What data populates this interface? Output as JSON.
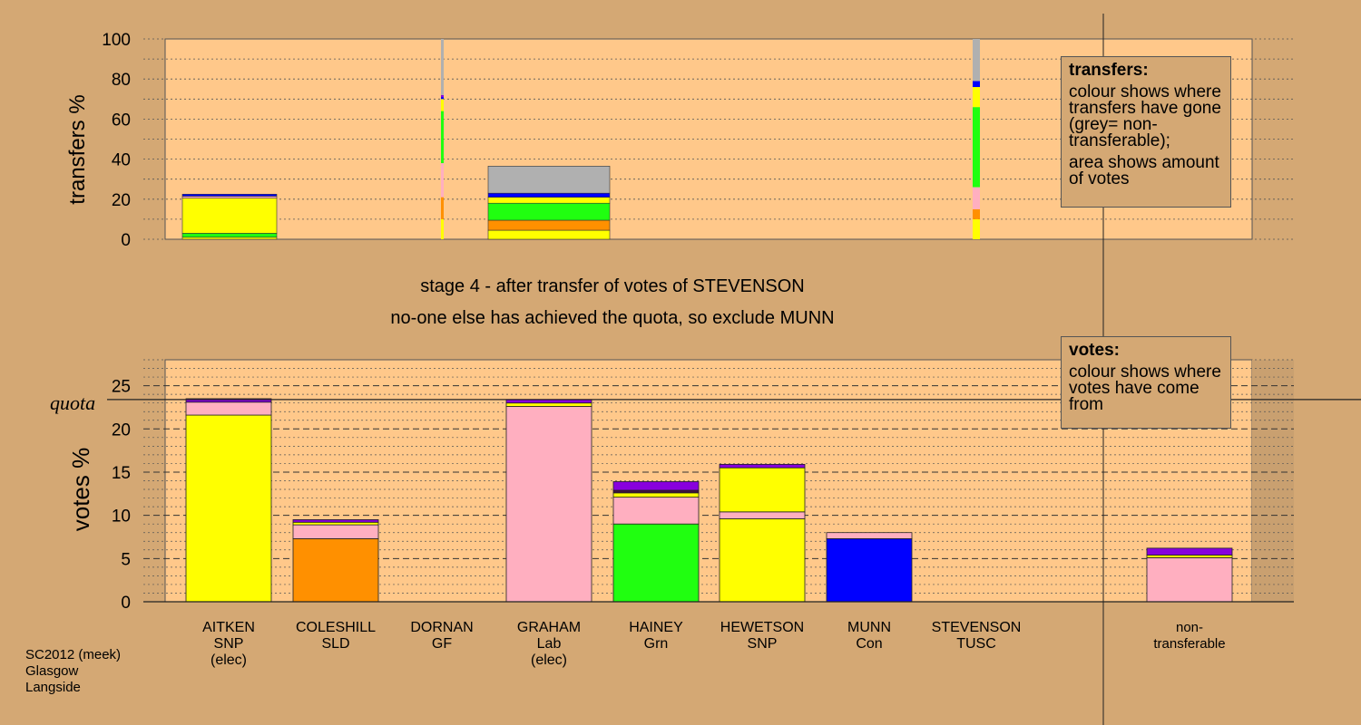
{
  "stage_line1": "stage 4 - after transfer of votes of STEVENSON",
  "stage_line2": "no-one else has achieved the quota, so exclude MUNN",
  "legend_transfers": {
    "title": "transfers:",
    "p1": "colour shows where transfers have gone (grey= non-transferable);",
    "p2": "area shows amount of votes"
  },
  "legend_votes": {
    "title": "votes:",
    "p1": "colour shows where votes have come from"
  },
  "source": [
    "SC2012 (meek)",
    "Glasgow",
    "Langside"
  ],
  "colors": {
    "background": "#d4a874",
    "plot_area": "#ffc88a",
    "SNP": "#ffff00",
    "SLD": "#ff9000",
    "Lab": "#ffafc0",
    "Grn": "#20ff10",
    "Con": "#0000ff",
    "TUSC": "#8800dd",
    "GF": "#401040",
    "nontransferable": "#b0b0b0"
  },
  "chart_data": [
    {
      "type": "bar",
      "name": "transfers",
      "ylabel": "transfers %",
      "ylim": [
        0,
        100
      ],
      "yticks": [
        0,
        20,
        40,
        60,
        80,
        100
      ],
      "grid": true,
      "bars": [
        {
          "candidate": "AITKEN",
          "segments": [
            {
              "to": "SNP",
              "value": 1
            },
            {
              "to": "Grn",
              "value": 2
            },
            {
              "to": "SNP",
              "value": 17.5
            },
            {
              "to": "Lab",
              "value": 1
            },
            {
              "to": "Con",
              "value": 1
            }
          ]
        },
        {
          "candidate": "DORNAN",
          "segments": [
            {
              "to": "SNP",
              "value": 10
            },
            {
              "to": "SLD",
              "value": 11
            },
            {
              "to": "Lab",
              "value": 17
            },
            {
              "to": "Grn",
              "value": 26
            },
            {
              "to": "SNP",
              "value": 6
            },
            {
              "to": "Con",
              "value": 1
            },
            {
              "to": "TUSC",
              "value": 1
            },
            {
              "to": "nontransferable",
              "value": 28
            }
          ]
        },
        {
          "candidate": "GRAHAM",
          "segments": [
            {
              "to": "SNP",
              "value": 4.5
            },
            {
              "to": "SLD",
              "value": 5
            },
            {
              "to": "Grn",
              "value": 8.5
            },
            {
              "to": "SNP",
              "value": 3
            },
            {
              "to": "Con",
              "value": 2
            },
            {
              "to": "nontransferable",
              "value": 13.5
            }
          ]
        },
        {
          "candidate": "STEVENSON",
          "segments": [
            {
              "to": "SNP",
              "value": 10
            },
            {
              "to": "SLD",
              "value": 5
            },
            {
              "to": "Lab",
              "value": 11
            },
            {
              "to": "Grn",
              "value": 40
            },
            {
              "to": "SNP",
              "value": 10
            },
            {
              "to": "Con",
              "value": 3
            },
            {
              "to": "nontransferable",
              "value": 21
            }
          ]
        }
      ]
    },
    {
      "type": "bar",
      "name": "votes",
      "ylabel": "votes %",
      "ylim": [
        0,
        28
      ],
      "yticks": [
        0,
        5,
        10,
        15,
        20,
        25
      ],
      "quota": 23.4,
      "quota_label": "quota",
      "grid": true,
      "categories": [
        {
          "name": "AITKEN",
          "party": "SNP",
          "note": "(elec)",
          "segments": [
            {
              "from": "SNP",
              "value": 21.6
            },
            {
              "from": "Lab",
              "value": 1.5
            },
            {
              "from": "TUSC",
              "value": 0.4
            }
          ]
        },
        {
          "name": "COLESHILL",
          "party": "SLD",
          "note": "",
          "segments": [
            {
              "from": "SLD",
              "value": 7.3
            },
            {
              "from": "Lab",
              "value": 1.6
            },
            {
              "from": "SNP",
              "value": 0.3
            },
            {
              "from": "TUSC",
              "value": 0.3
            }
          ]
        },
        {
          "name": "DORNAN",
          "party": "GF",
          "note": "",
          "segments": []
        },
        {
          "name": "GRAHAM",
          "party": "Lab",
          "note": "(elec)",
          "segments": [
            {
              "from": "Lab",
              "value": 22.6
            },
            {
              "from": "SNP",
              "value": 0.4
            },
            {
              "from": "TUSC",
              "value": 0.4
            }
          ]
        },
        {
          "name": "HAINEY",
          "party": "Grn",
          "note": "",
          "segments": [
            {
              "from": "Grn",
              "value": 9.0
            },
            {
              "from": "Lab",
              "value": 3.1
            },
            {
              "from": "SNP",
              "value": 0.5
            },
            {
              "from": "GF",
              "value": 0.3
            },
            {
              "from": "TUSC",
              "value": 1.0
            }
          ]
        },
        {
          "name": "HEWETSON",
          "party": "SNP",
          "note": "",
          "segments": [
            {
              "from": "SNP",
              "value": 9.6
            },
            {
              "from": "Lab",
              "value": 0.8
            },
            {
              "from": "SNP",
              "value": 5.1
            },
            {
              "from": "TUSC",
              "value": 0.4
            }
          ]
        },
        {
          "name": "MUNN",
          "party": "Con",
          "note": "",
          "segments": [
            {
              "from": "Con",
              "value": 7.3
            },
            {
              "from": "Lab",
              "value": 0.7
            }
          ]
        },
        {
          "name": "STEVENSON",
          "party": "TUSC",
          "note": "",
          "segments": []
        },
        {
          "name": "non-",
          "party": "transferable",
          "note": "",
          "segments": [
            {
              "from": "Lab",
              "value": 5.1
            },
            {
              "from": "SNP",
              "value": 0.3
            },
            {
              "from": "TUSC",
              "value": 0.8
            }
          ]
        }
      ]
    }
  ]
}
